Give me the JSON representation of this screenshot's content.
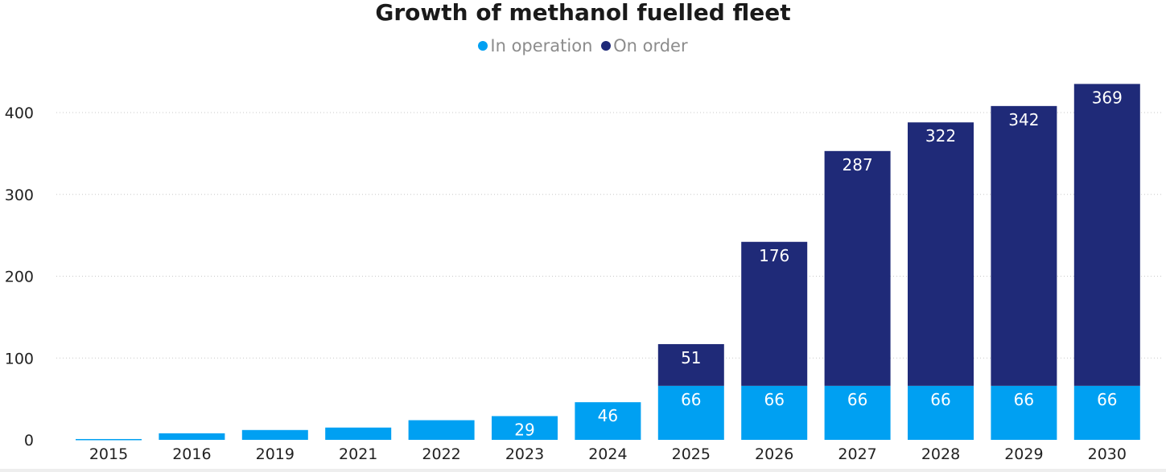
{
  "chart_data": {
    "type": "bar",
    "stacked": true,
    "title": "Growth of methanol fuelled fleet",
    "xlabel": "",
    "ylabel": "",
    "categories": [
      "2015",
      "2016",
      "2019",
      "2021",
      "2022",
      "2023",
      "2024",
      "2025",
      "2026",
      "2027",
      "2028",
      "2029",
      "2030"
    ],
    "series": [
      {
        "name": "In operation",
        "color": "#00a0f2",
        "values": [
          1,
          8,
          12,
          15,
          24,
          29,
          46,
          66,
          66,
          66,
          66,
          66,
          66
        ]
      },
      {
        "name": "On order",
        "color": "#1f2a78",
        "values": [
          0,
          0,
          0,
          0,
          0,
          0,
          0,
          51,
          176,
          287,
          322,
          342,
          369
        ]
      }
    ],
    "data_labels": {
      "In operation": [
        "",
        "",
        "",
        "",
        "",
        "29",
        "46",
        "66",
        "66",
        "66",
        "66",
        "66",
        "66"
      ],
      "On order": [
        "",
        "",
        "",
        "",
        "",
        "",
        "",
        "51",
        "176",
        "287",
        "322",
        "342",
        "369"
      ]
    },
    "yticks": [
      0,
      100,
      200,
      300,
      400
    ],
    "ylim": [
      0,
      440
    ],
    "grid": "horizontal-dotted",
    "legend": "top-center"
  }
}
